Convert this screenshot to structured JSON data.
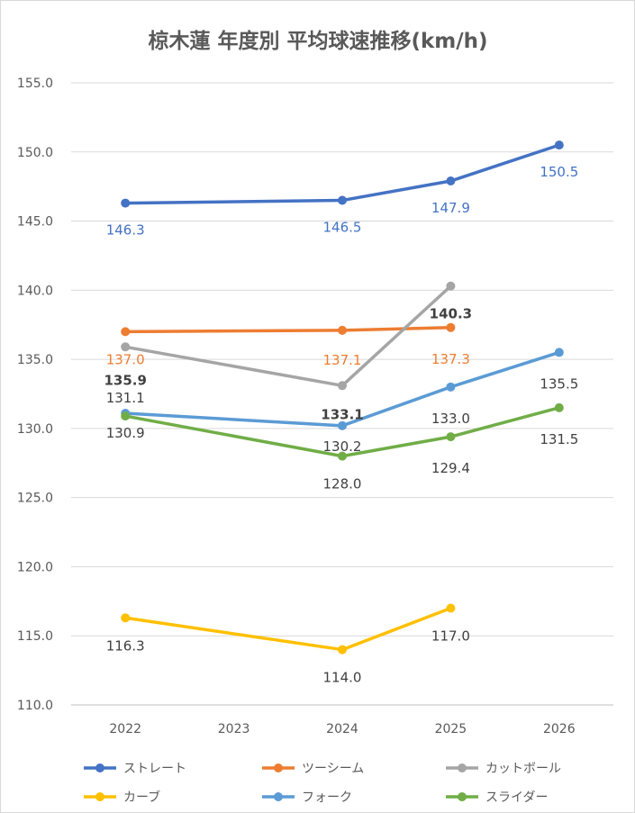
{
  "chart_data": {
    "type": "line",
    "title": "椋木蓮 年度別 平均球速推移(km/h)",
    "xlabel": "",
    "ylabel": "",
    "categories": [
      "2022",
      "2023",
      "2024",
      "2025",
      "2026"
    ],
    "ylim": [
      110,
      155
    ],
    "yticks": [
      "110.0",
      "115.0",
      "120.0",
      "125.0",
      "130.0",
      "135.0",
      "140.0",
      "145.0",
      "150.0",
      "155.0"
    ],
    "grid": true,
    "legend_position": "bottom",
    "series": [
      {
        "name": "ストレート",
        "color": "#4472C4",
        "label_color": "#4472C4",
        "values": [
          146.3,
          null,
          146.5,
          147.9,
          150.5
        ],
        "labels": [
          "146.3",
          "",
          "146.5",
          "147.9",
          "150.5"
        ]
      },
      {
        "name": "ツーシーム",
        "color": "#ED7D31",
        "label_color": "#ED7D31",
        "values": [
          137.0,
          null,
          137.1,
          137.3,
          null
        ],
        "labels": [
          "137.0",
          "",
          "137.1",
          "137.3",
          ""
        ]
      },
      {
        "name": "カットボール",
        "color": "#A5A5A5",
        "label_color": "#404040",
        "values": [
          135.9,
          null,
          133.1,
          140.3,
          null
        ],
        "labels": [
          "135.9",
          "",
          "133.1",
          "140.3",
          ""
        ]
      },
      {
        "name": "カーブ",
        "color": "#FFC000",
        "label_color": "#404040",
        "values": [
          116.3,
          null,
          114.0,
          117.0,
          null
        ],
        "labels": [
          "116.3",
          "",
          "114.0",
          "117.0",
          ""
        ]
      },
      {
        "name": "フォーク",
        "color": "#5B9BD5",
        "label_color": "#404040",
        "values": [
          131.1,
          null,
          130.2,
          133.0,
          135.5
        ],
        "labels": [
          "131.1",
          "",
          "130.2",
          "133.0",
          "135.5"
        ]
      },
      {
        "name": "スライダー",
        "color": "#70AD47",
        "label_color": "#404040",
        "values": [
          130.9,
          null,
          128.0,
          129.4,
          131.5
        ],
        "labels": [
          "130.9",
          "",
          "128.0",
          "129.4",
          "131.5"
        ]
      }
    ]
  }
}
